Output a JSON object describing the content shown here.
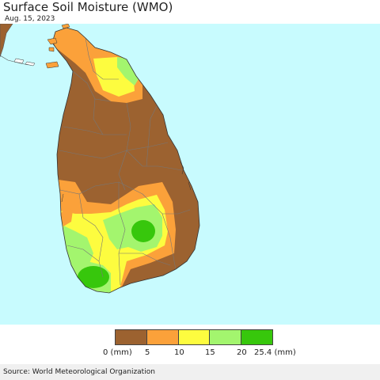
{
  "header": {
    "title": "Surface Soil Moisture (WMO)",
    "date": "Aug. 15, 2023"
  },
  "legend": {
    "colors": [
      "#9c6230",
      "#fba13a",
      "#fdfc3f",
      "#a3f56e",
      "#37c70c"
    ],
    "labels": [
      "0 (mm)",
      "5",
      "10",
      "15",
      "20",
      "25.4 (mm)"
    ]
  },
  "colors": {
    "ocean": "#c8fbfe",
    "outside": "#ffffff",
    "boundary": "#777777"
  },
  "footer": {
    "source": "Source: World Meteorological Organization"
  }
}
